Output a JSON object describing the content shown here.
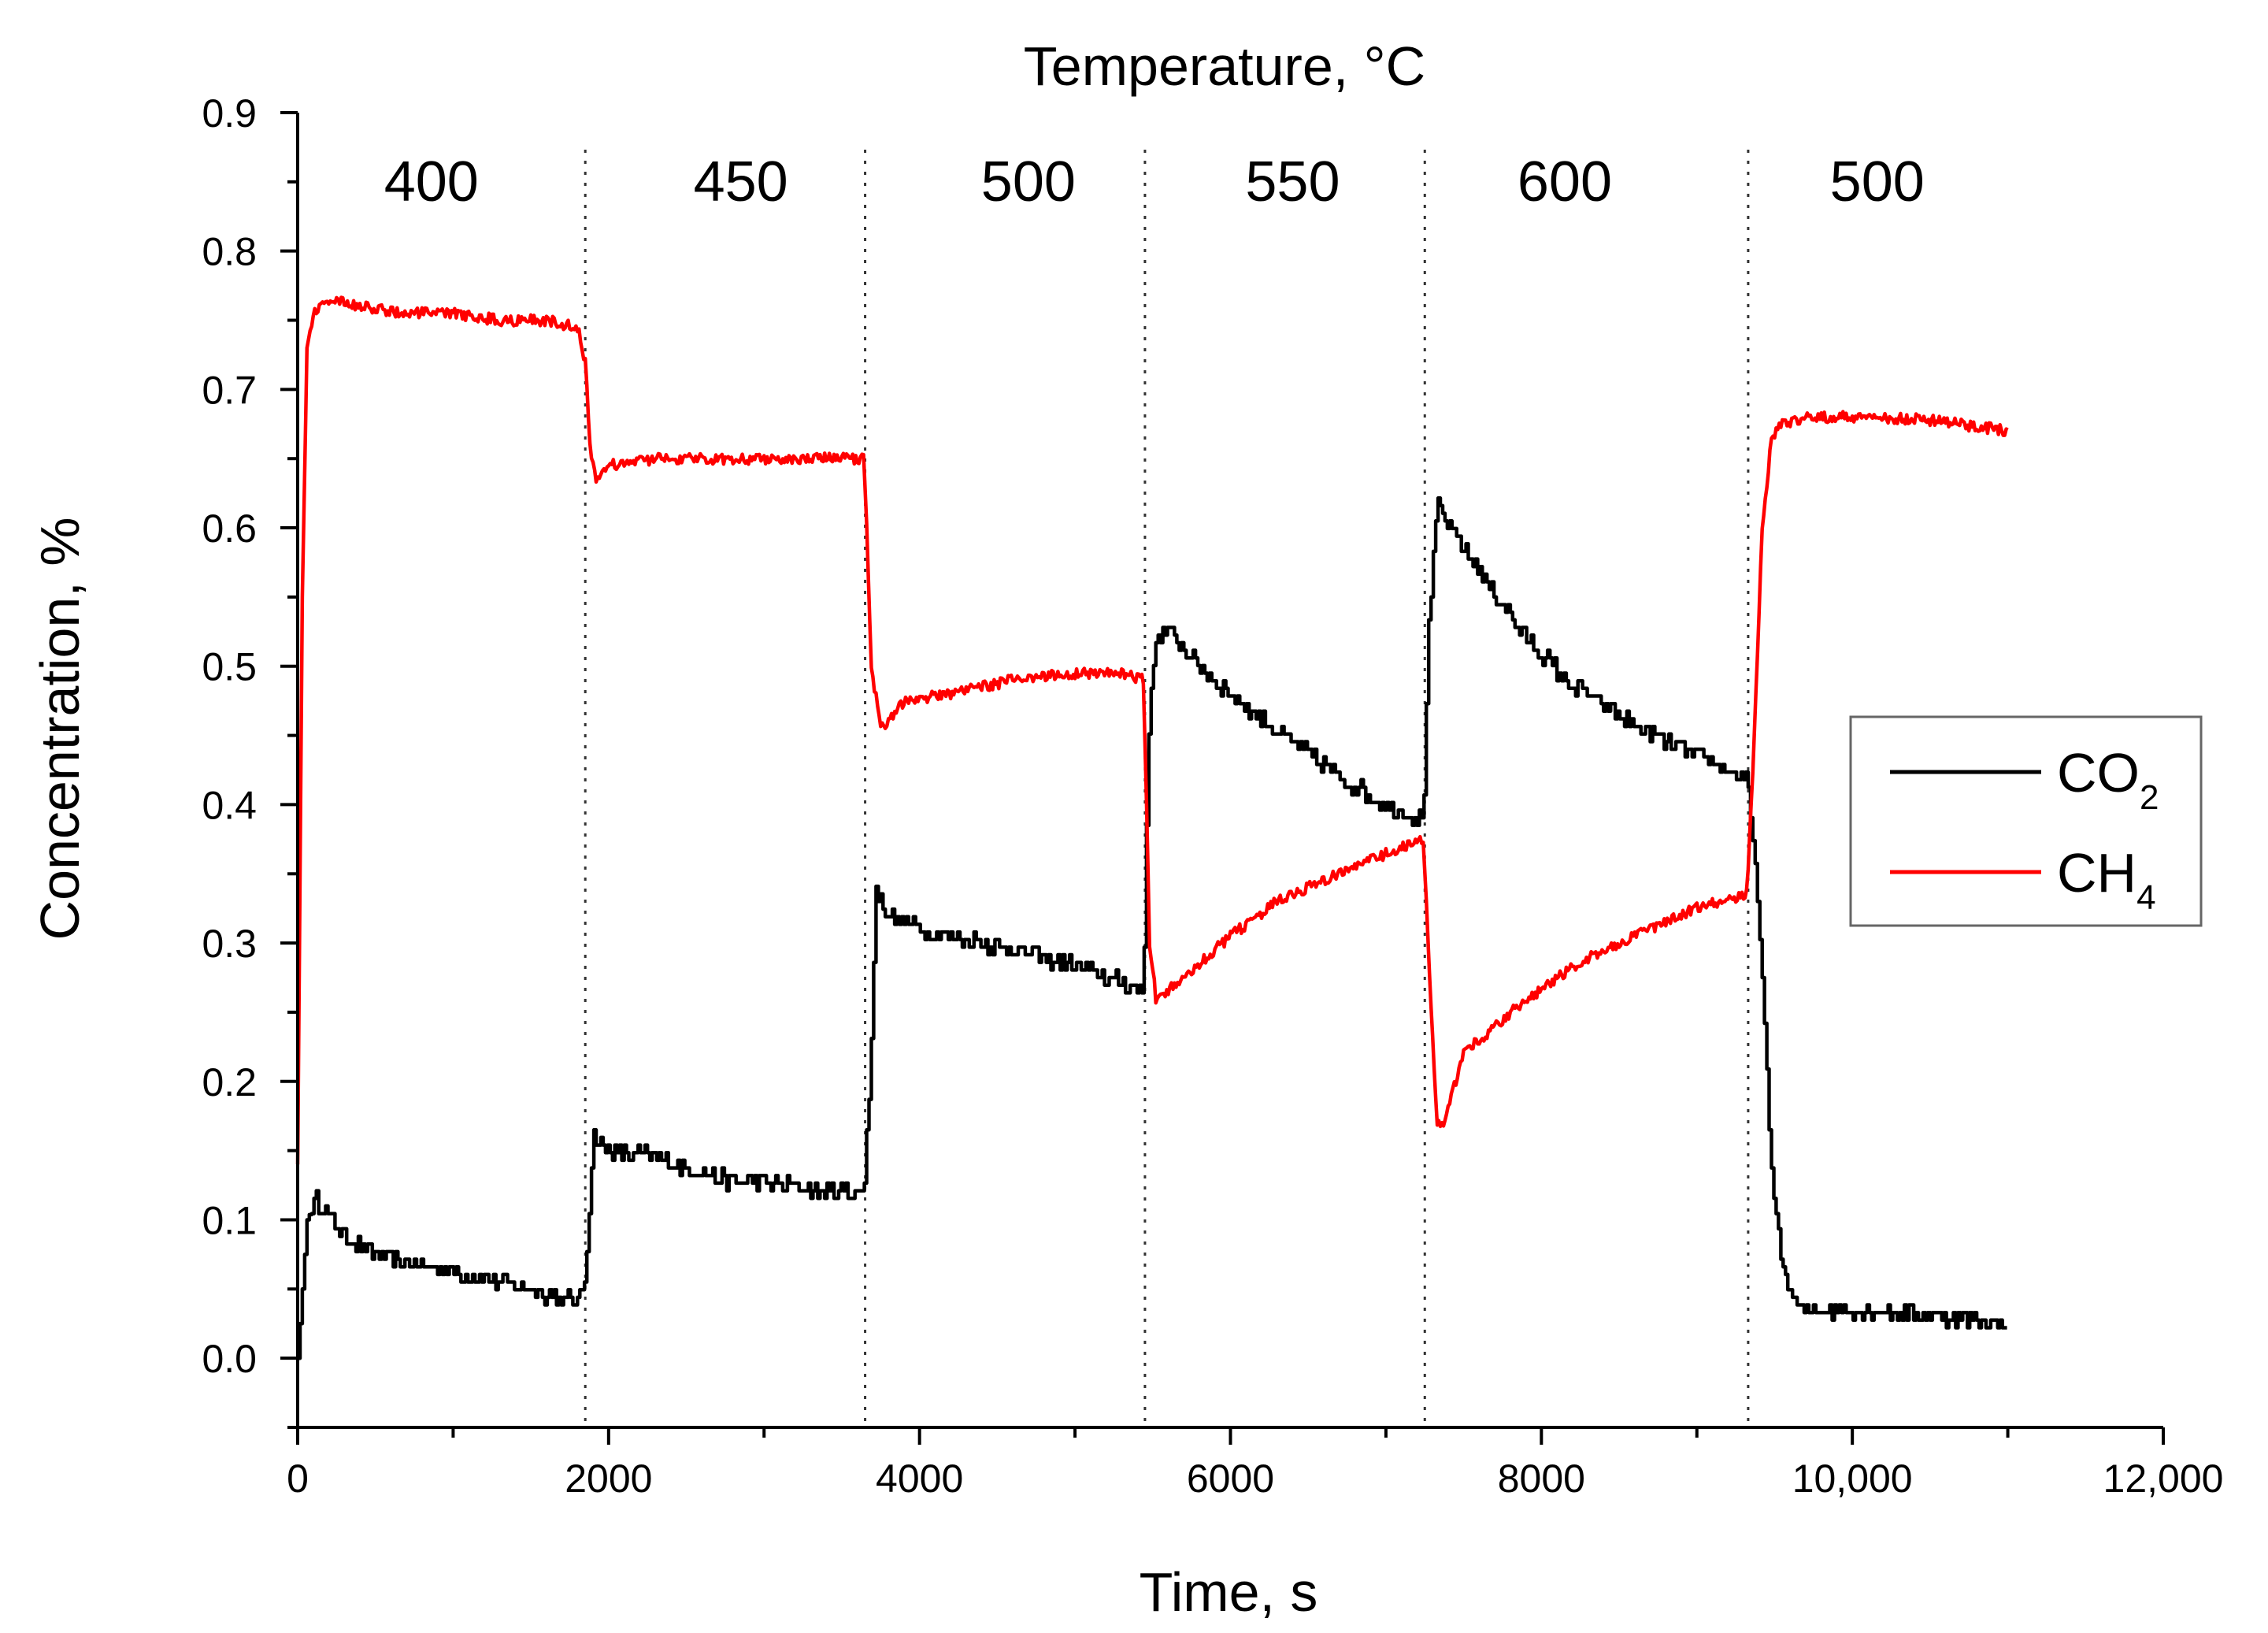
{
  "chart_data": {
    "type": "line",
    "title": "Temperature, °C",
    "xlabel": "Time, s",
    "ylabel": "Concentration, %",
    "xlim": [
      0,
      12000
    ],
    "ylim": [
      -0.05,
      0.9
    ],
    "x_ticks": [
      {
        "value": 0,
        "label": "0"
      },
      {
        "value": 2000,
        "label": "2000"
      },
      {
        "value": 4000,
        "label": "4000"
      },
      {
        "value": 6000,
        "label": "6000"
      },
      {
        "value": 8000,
        "label": "8000"
      },
      {
        "value": 10000,
        "label": "10,000"
      },
      {
        "value": 12000,
        "label": "12,000"
      }
    ],
    "y_ticks": [
      {
        "value": 0.0,
        "label": "0.0"
      },
      {
        "value": 0.1,
        "label": "0.1"
      },
      {
        "value": 0.2,
        "label": "0.2"
      },
      {
        "value": 0.3,
        "label": "0.3"
      },
      {
        "value": 0.4,
        "label": "0.4"
      },
      {
        "value": 0.5,
        "label": "0.5"
      },
      {
        "value": 0.6,
        "label": "0.6"
      },
      {
        "value": 0.7,
        "label": "0.7"
      },
      {
        "value": 0.8,
        "label": "0.8"
      },
      {
        "value": 0.9,
        "label": "0.9"
      }
    ],
    "temperature_boundaries": [
      1850,
      3650,
      5450,
      7250,
      9330
    ],
    "temperature_regions": [
      {
        "label": "400",
        "x": 860
      },
      {
        "label": "450",
        "x": 2850
      },
      {
        "label": "500",
        "x": 4700
      },
      {
        "label": "550",
        "x": 6400
      },
      {
        "label": "600",
        "x": 8150
      },
      {
        "label": "500",
        "x": 10160
      }
    ],
    "legend": {
      "position": "right",
      "entries": [
        {
          "name": "CO",
          "subscript": "2",
          "color": "#000000"
        },
        {
          "name": "CH",
          "subscript": "4",
          "color": "#ff0000"
        }
      ]
    },
    "series": [
      {
        "name": "CO2",
        "color": "#000000",
        "x": [
          0,
          60,
          120,
          250,
          400,
          600,
          900,
          1200,
          1500,
          1800,
          1850,
          1900,
          2000,
          2300,
          2700,
          3100,
          3400,
          3640,
          3680,
          3720,
          3800,
          4000,
          4400,
          4800,
          5200,
          5440,
          5470,
          5520,
          5600,
          5800,
          6100,
          6400,
          6700,
          7000,
          7240,
          7270,
          7330,
          7400,
          7600,
          7900,
          8200,
          8500,
          8800,
          9100,
          9320,
          9400,
          9480,
          9560,
          9650,
          9800,
          10200,
          10600,
          11000
        ],
        "values": [
          0.0,
          0.1,
          0.115,
          0.095,
          0.08,
          0.07,
          0.065,
          0.058,
          0.05,
          0.04,
          0.06,
          0.16,
          0.15,
          0.145,
          0.13,
          0.125,
          0.12,
          0.12,
          0.2,
          0.34,
          0.32,
          0.31,
          0.3,
          0.29,
          0.275,
          0.265,
          0.45,
          0.52,
          0.525,
          0.5,
          0.47,
          0.445,
          0.42,
          0.4,
          0.39,
          0.52,
          0.62,
          0.6,
          0.57,
          0.52,
          0.485,
          0.465,
          0.445,
          0.43,
          0.42,
          0.32,
          0.13,
          0.06,
          0.035,
          0.035,
          0.035,
          0.03,
          0.025
        ]
      },
      {
        "name": "CH4",
        "color": "#ff0000",
        "x": [
          0,
          30,
          60,
          100,
          200,
          400,
          700,
          1000,
          1300,
          1600,
          1800,
          1850,
          1880,
          1920,
          2000,
          2300,
          2700,
          3100,
          3400,
          3640,
          3660,
          3690,
          3750,
          3900,
          4200,
          4600,
          5000,
          5300,
          5440,
          5460,
          5480,
          5520,
          5700,
          6000,
          6300,
          6600,
          6900,
          7240,
          7260,
          7290,
          7330,
          7370,
          7500,
          7800,
          8100,
          8400,
          8700,
          9000,
          9320,
          9360,
          9420,
          9480,
          9550,
          9700,
          10000,
          10500,
          11000
        ],
        "values": [
          0.14,
          0.55,
          0.73,
          0.755,
          0.765,
          0.76,
          0.755,
          0.755,
          0.75,
          0.75,
          0.745,
          0.72,
          0.66,
          0.635,
          0.645,
          0.65,
          0.65,
          0.65,
          0.65,
          0.65,
          0.6,
          0.5,
          0.455,
          0.475,
          0.48,
          0.49,
          0.495,
          0.495,
          0.49,
          0.4,
          0.3,
          0.26,
          0.275,
          0.305,
          0.33,
          0.345,
          0.36,
          0.375,
          0.33,
          0.25,
          0.17,
          0.17,
          0.22,
          0.25,
          0.275,
          0.295,
          0.31,
          0.325,
          0.335,
          0.42,
          0.6,
          0.665,
          0.675,
          0.68,
          0.68,
          0.678,
          0.67
        ]
      }
    ]
  }
}
